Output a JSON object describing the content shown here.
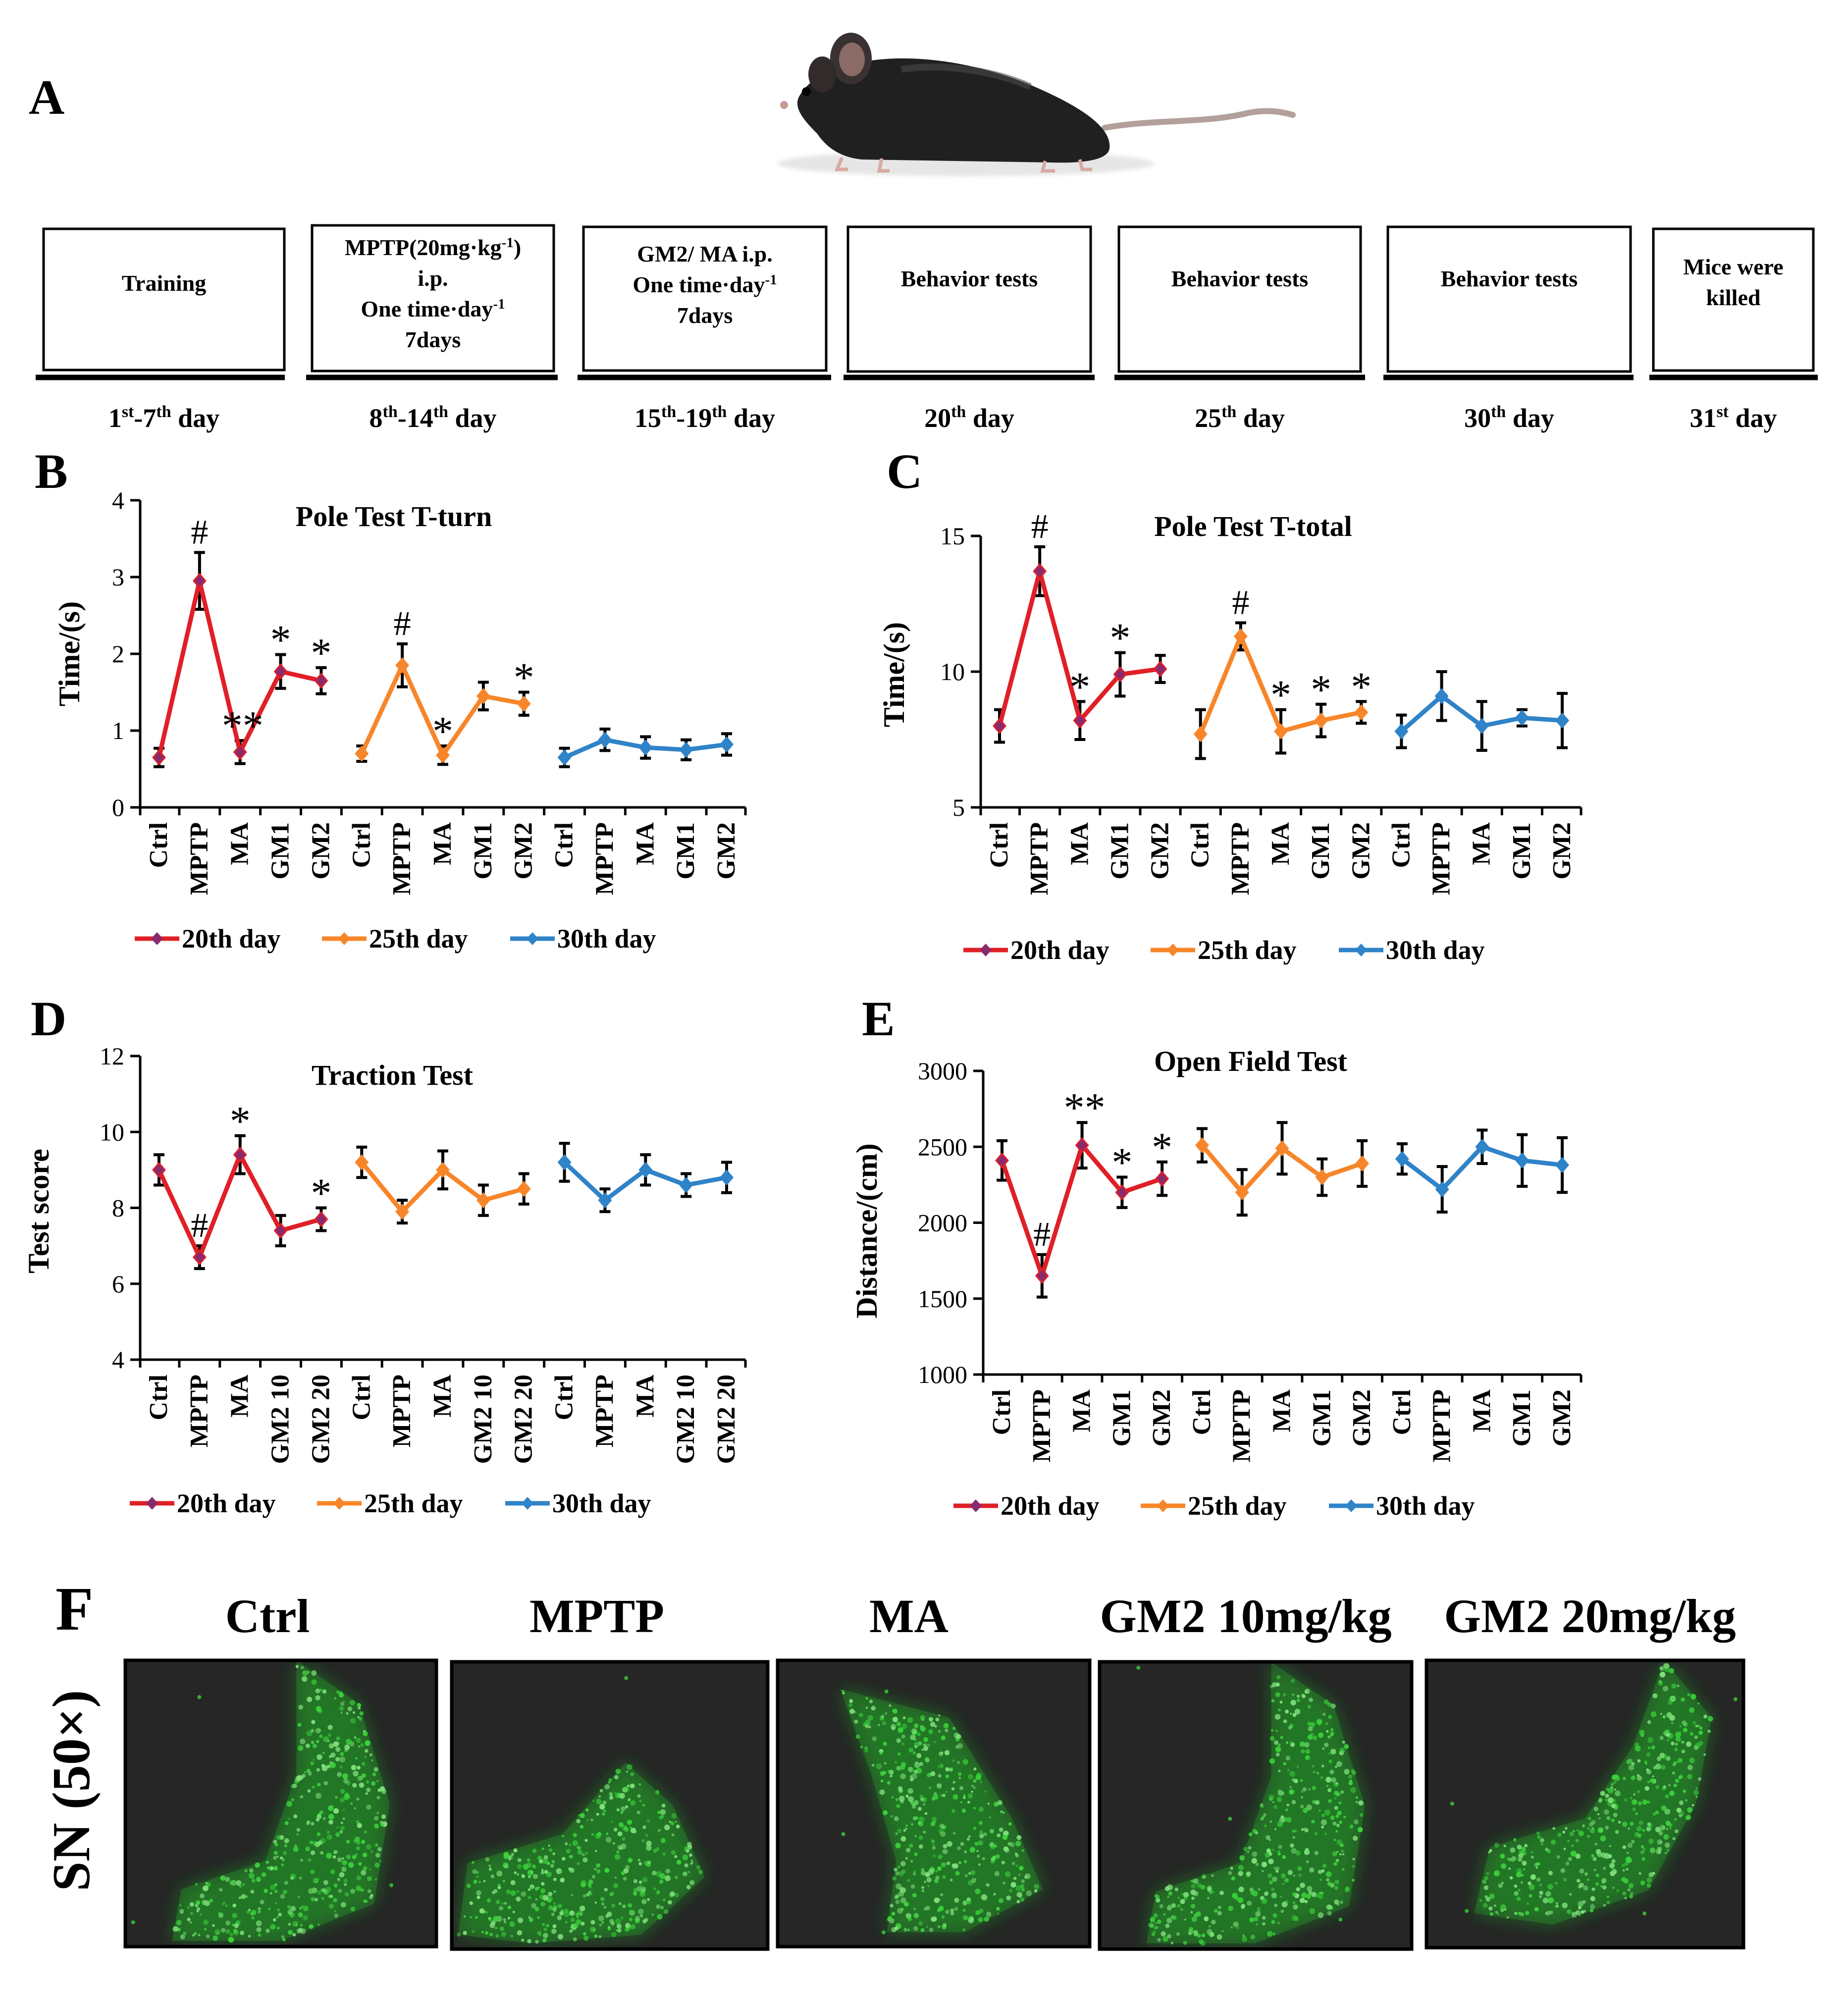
{
  "panel_labels": {
    "A": "A",
    "B": "B",
    "C": "C",
    "D": "D",
    "E": "E",
    "F": "F"
  },
  "timeline": {
    "boxes": [
      {
        "lines": [
          "Training"
        ],
        "day": {
          "pre": "1",
          "sup1": "st",
          "mid": "-7",
          "sup2": "th",
          "post": " day"
        }
      },
      {
        "lines": [
          "MPTP(20mg·kg-1)",
          "i.p.",
          "One time·day-1",
          "7days"
        ],
        "day": {
          "pre": "8",
          "sup1": "th",
          "mid": "-14",
          "sup2": "th",
          "post": " day"
        }
      },
      {
        "lines": [
          "GM2/ MA  i.p.",
          "One time·day-1",
          "7days"
        ],
        "day": {
          "pre": "15",
          "sup1": "th",
          "mid": "-19",
          "sup2": "th",
          "post": " day"
        }
      },
      {
        "lines": [
          "Behavior tests"
        ],
        "day": {
          "pre": "20",
          "sup1": "th",
          "mid": "",
          "sup2": "",
          "post": " day"
        }
      },
      {
        "lines": [
          "Behavior tests"
        ],
        "day": {
          "pre": "25",
          "sup1": "th",
          "mid": "",
          "sup2": "",
          "post": " day"
        }
      },
      {
        "lines": [
          "Behavior tests"
        ],
        "day": {
          "pre": "30",
          "sup1": "th",
          "mid": "",
          "sup2": "",
          "post": " day"
        }
      },
      {
        "lines": [
          "Mice were",
          "killed"
        ],
        "day": {
          "pre": "31",
          "sup1": "st",
          "mid": "",
          "sup2": "",
          "post": " day"
        }
      }
    ]
  },
  "chart_data": [
    {
      "panel": "B",
      "type": "line",
      "title": "Pole Test T-turn",
      "ylabel": "Time/(s)",
      "ylim": [
        0,
        4
      ],
      "yticks": [
        0,
        1,
        2,
        3,
        4
      ],
      "categories": [
        "Ctrl",
        "MPTP",
        "MA",
        "GM1",
        "GM2"
      ],
      "series": [
        {
          "name": "20th day",
          "color": "#e01f26",
          "values": [
            0.65,
            2.95,
            0.72,
            1.77,
            1.65
          ],
          "errors": [
            0.12,
            0.37,
            0.15,
            0.22,
            0.17
          ],
          "marks": [
            "",
            "#",
            "**",
            "*",
            "*"
          ]
        },
        {
          "name": "25th day",
          "color": "#f7862a",
          "values": [
            0.7,
            1.85,
            0.68,
            1.45,
            1.35
          ],
          "errors": [
            0.1,
            0.28,
            0.12,
            0.18,
            0.15
          ],
          "marks": [
            "",
            "#",
            "*",
            "",
            "*"
          ]
        },
        {
          "name": "30th day",
          "color": "#2f83c8",
          "values": [
            0.65,
            0.88,
            0.78,
            0.75,
            0.82
          ],
          "errors": [
            0.12,
            0.14,
            0.14,
            0.13,
            0.14
          ],
          "marks": [
            "",
            "",
            "",
            "",
            ""
          ]
        }
      ]
    },
    {
      "panel": "C",
      "type": "line",
      "title": "Pole Test T-total",
      "ylabel": "Time/(s)",
      "ylim": [
        5,
        15
      ],
      "yticks": [
        5,
        10,
        15
      ],
      "categories": [
        "Ctrl",
        "MPTP",
        "MA",
        "GM1",
        "GM2"
      ],
      "series": [
        {
          "name": "20th day",
          "color": "#e01f26",
          "values": [
            8.0,
            13.7,
            8.2,
            9.9,
            10.1
          ],
          "errors": [
            0.6,
            0.9,
            0.7,
            0.8,
            0.5
          ],
          "marks": [
            "",
            "#",
            "*",
            "*",
            ""
          ]
        },
        {
          "name": "25th day",
          "color": "#f7862a",
          "values": [
            7.7,
            11.3,
            7.8,
            8.2,
            8.5
          ],
          "errors": [
            0.9,
            0.5,
            0.8,
            0.6,
            0.4
          ],
          "marks": [
            "",
            "#",
            "*",
            "*",
            "*"
          ]
        },
        {
          "name": "30th day",
          "color": "#2f83c8",
          "values": [
            7.8,
            9.1,
            8.0,
            8.3,
            8.2
          ],
          "errors": [
            0.6,
            0.9,
            0.9,
            0.3,
            1.0
          ],
          "marks": [
            "",
            "",
            "",
            "",
            ""
          ]
        }
      ]
    },
    {
      "panel": "D",
      "type": "line",
      "title": "Traction Test",
      "ylabel": "Test score",
      "ylim": [
        4,
        12
      ],
      "yticks": [
        4,
        6,
        8,
        10,
        12
      ],
      "categories": [
        "Ctrl",
        "MPTP",
        "MA",
        "GM2 10",
        "GM2 20"
      ],
      "series": [
        {
          "name": "20th day",
          "color": "#e01f26",
          "values": [
            9.0,
            6.7,
            9.4,
            7.4,
            7.7
          ],
          "errors": [
            0.4,
            0.3,
            0.5,
            0.4,
            0.3
          ],
          "marks": [
            "",
            "#",
            "*",
            "",
            "*"
          ]
        },
        {
          "name": "25th day",
          "color": "#f7862a",
          "values": [
            9.2,
            7.9,
            9.0,
            8.2,
            8.5
          ],
          "errors": [
            0.4,
            0.3,
            0.5,
            0.4,
            0.4
          ],
          "marks": [
            "",
            "",
            "",
            "",
            ""
          ]
        },
        {
          "name": "30th day",
          "color": "#2f83c8",
          "values": [
            9.2,
            8.2,
            9.0,
            8.6,
            8.8
          ],
          "errors": [
            0.5,
            0.3,
            0.4,
            0.3,
            0.4
          ],
          "marks": [
            "",
            "",
            "",
            "",
            ""
          ]
        }
      ]
    },
    {
      "panel": "E",
      "type": "line",
      "title": "Open Field Test",
      "ylabel": "Distance/(cm)",
      "ylim": [
        1000,
        3000
      ],
      "yticks": [
        1000,
        1500,
        2000,
        2500,
        3000
      ],
      "categories": [
        "Ctrl",
        "MPTP",
        "MA",
        "GM1",
        "GM2"
      ],
      "series": [
        {
          "name": "20th day",
          "color": "#e01f26",
          "values": [
            2410,
            1650,
            2510,
            2200,
            2290
          ],
          "errors": [
            130,
            140,
            150,
            100,
            110
          ],
          "marks": [
            "",
            "#",
            "**",
            "*",
            "*"
          ]
        },
        {
          "name": "25th day",
          "color": "#f7862a",
          "values": [
            2510,
            2200,
            2490,
            2300,
            2390
          ],
          "errors": [
            110,
            150,
            170,
            120,
            150
          ],
          "marks": [
            "",
            "",
            "",
            "",
            ""
          ]
        },
        {
          "name": "30th day",
          "color": "#2f83c8",
          "values": [
            2420,
            2220,
            2500,
            2410,
            2380
          ],
          "errors": [
            100,
            150,
            110,
            170,
            180
          ],
          "marks": [
            "",
            "",
            "",
            "",
            ""
          ]
        }
      ]
    }
  ],
  "panel_f": {
    "titles": [
      "Ctrl",
      "MPTP",
      "MA",
      "GM2 10mg/kg",
      "GM2 20mg/kg"
    ],
    "row_label": "SN (50×)",
    "fluorescence_color": "#3ad13a"
  }
}
